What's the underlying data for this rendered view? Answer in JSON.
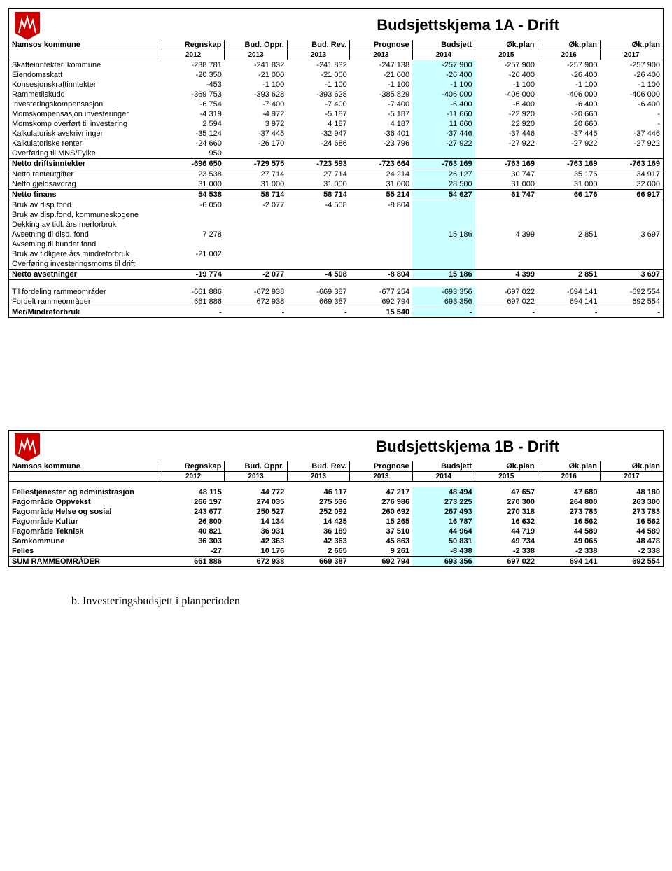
{
  "table1": {
    "title": "Budsjettskjema 1A - Drift",
    "org": "Namsos kommune",
    "cols": [
      "Regnskap",
      "Bud. Oppr.",
      "Bud. Rev.",
      "Prognose",
      "Budsjett",
      "Øk.plan",
      "Øk.plan",
      "Øk.plan"
    ],
    "years": [
      "2012",
      "2013",
      "2013",
      "2013",
      "2014",
      "2015",
      "2016",
      "2017"
    ],
    "rows": [
      {
        "l": "Skatteinntekter, kommune",
        "v": [
          "-238 781",
          "-241 832",
          "-241 832",
          "-247 138",
          "-257 900",
          "-257 900",
          "-257 900",
          "-257 900"
        ]
      },
      {
        "l": "Eiendomsskatt",
        "v": [
          "-20 350",
          "-21 000",
          "-21 000",
          "-21 000",
          "-26 400",
          "-26 400",
          "-26 400",
          "-26 400"
        ]
      },
      {
        "l": "Konsesjonskraftinntekter",
        "v": [
          "-453",
          "-1 100",
          "-1 100",
          "-1 100",
          "-1 100",
          "-1 100",
          "-1 100",
          "-1 100"
        ]
      },
      {
        "l": "Rammetilskudd",
        "v": [
          "-369 753",
          "-393 628",
          "-393 628",
          "-385 829",
          "-406 000",
          "-406 000",
          "-406 000",
          "-406 000"
        ]
      },
      {
        "l": "Investeringskompensasjon",
        "v": [
          "-6 754",
          "-7 400",
          "-7 400",
          "-7 400",
          "-6 400",
          "-6 400",
          "-6 400",
          "-6 400"
        ]
      },
      {
        "l": "Momskompensasjon investeringer",
        "v": [
          "-4 319",
          "-4 972",
          "-5 187",
          "-5 187",
          "-11 660",
          "-22 920",
          "-20 660",
          "-"
        ]
      },
      {
        "l": "Momskomp overført til investering",
        "v": [
          "2 594",
          "3 972",
          "4 187",
          "4 187",
          "11 660",
          "22 920",
          "20 660",
          "-"
        ]
      },
      {
        "l": "Kalkulatorisk avskrivninger",
        "v": [
          "-35 124",
          "-37 445",
          "-32 947",
          "-36 401",
          "-37 446",
          "-37 446",
          "-37 446",
          "-37 446"
        ]
      },
      {
        "l": "Kalkulatoriske renter",
        "v": [
          "-24 660",
          "-26 170",
          "-24 686",
          "-23 796",
          "-27 922",
          "-27 922",
          "-27 922",
          "-27 922"
        ]
      },
      {
        "l": "Overføring til MNS/Fylke",
        "v": [
          "950",
          "",
          "",
          "",
          "",
          "",
          "",
          ""
        ]
      }
    ],
    "sum1": {
      "l": "Netto driftsinntekter",
      "v": [
        "-696 650",
        "-729 575",
        "-723 593",
        "-723 664",
        "-763 169",
        "-763 169",
        "-763 169",
        "-763 169"
      ]
    },
    "rows2": [
      {
        "l": "Netto renteutgifter",
        "v": [
          "23 538",
          "27 714",
          "27 714",
          "24 214",
          "26 127",
          "30 747",
          "35 176",
          "34 917"
        ]
      },
      {
        "l": "Netto gjeldsavdrag",
        "v": [
          "31 000",
          "31 000",
          "31 000",
          "31 000",
          "28 500",
          "31 000",
          "31 000",
          "32 000"
        ]
      }
    ],
    "sum2": {
      "l": "Netto finans",
      "v": [
        "54 538",
        "58 714",
        "58 714",
        "55 214",
        "54 627",
        "61 747",
        "66 176",
        "66 917"
      ]
    },
    "rows3": [
      {
        "l": "Bruk av disp.fond",
        "v": [
          "-6 050",
          "-2 077",
          "-4 508",
          "-8 804",
          "",
          "",
          "",
          ""
        ]
      },
      {
        "l": "Bruk av disp.fond, kommuneskogene",
        "v": [
          "",
          "",
          "",
          "",
          "",
          "",
          "",
          ""
        ]
      },
      {
        "l": "Dekking av tidl. års merforbruk",
        "v": [
          "",
          "",
          "",
          "",
          "",
          "",
          "",
          ""
        ]
      },
      {
        "l": "Avsetning til disp. fond",
        "v": [
          "7 278",
          "",
          "",
          "",
          "15 186",
          "4 399",
          "2 851",
          "3 697"
        ]
      },
      {
        "l": "Avsetning til bundet fond",
        "v": [
          "",
          "",
          "",
          "",
          "",
          "",
          "",
          ""
        ]
      },
      {
        "l": "Bruk av tidligere års mindreforbruk",
        "v": [
          "-21 002",
          "",
          "",
          "",
          "",
          "",
          "",
          ""
        ]
      },
      {
        "l": "Overføring investeringsmoms til drift",
        "v": [
          "",
          "",
          "",
          "",
          "",
          "",
          "",
          ""
        ]
      }
    ],
    "sum3": {
      "l": "Netto avsetninger",
      "v": [
        "-19 774",
        "-2 077",
        "-4 508",
        "-8 804",
        "15 186",
        "4 399",
        "2 851",
        "3 697"
      ]
    },
    "rows4": [
      {
        "l": "Til fordeling rammeområder",
        "v": [
          "-661 886",
          "-672 938",
          "-669 387",
          "-677 254",
          "-693 356",
          "-697 022",
          "-694 141",
          "-692 554"
        ]
      },
      {
        "l": "Fordelt rammeområder",
        "v": [
          "661 886",
          "672 938",
          "669 387",
          "692 794",
          "693 356",
          "697 022",
          "694 141",
          "692 554"
        ]
      }
    ],
    "sum4": {
      "l": "Mer/Mindreforbruk",
      "v": [
        "-",
        "-",
        "-",
        "15 540",
        "-",
        "-",
        "-",
        "-"
      ]
    }
  },
  "table2": {
    "title": "Budsjettskjema 1B - Drift",
    "org": "Namsos kommune",
    "cols": [
      "Regnskap",
      "Bud. Oppr.",
      "Bud. Rev.",
      "Prognose",
      "Budsjett",
      "Øk.plan",
      "Øk.plan",
      "Øk.plan"
    ],
    "years": [
      "2012",
      "2013",
      "2013",
      "2013",
      "2014",
      "2015",
      "2016",
      "2017"
    ],
    "rows": [
      {
        "l": "Fellestjenester og administrasjon",
        "v": [
          "48 115",
          "44 772",
          "46 117",
          "47 217",
          "48 494",
          "47 657",
          "47 680",
          "48 180"
        ],
        "b": true
      },
      {
        "l": "Fagområde Oppvekst",
        "v": [
          "266 197",
          "274 035",
          "275 536",
          "276 986",
          "273 225",
          "270 300",
          "264 800",
          "263 300"
        ],
        "b": true
      },
      {
        "l": "Fagområde Helse og sosial",
        "v": [
          "243 677",
          "250 527",
          "252 092",
          "260 692",
          "267 493",
          "270 318",
          "273 783",
          "273 783"
        ],
        "b": true
      },
      {
        "l": "Fagområde Kultur",
        "v": [
          "26 800",
          "14 134",
          "14 425",
          "15 265",
          "16 787",
          "16 632",
          "16 562",
          "16 562"
        ],
        "b": true
      },
      {
        "l": "Fagområde Teknisk",
        "v": [
          "40 821",
          "36 931",
          "36 189",
          "37 510",
          "44 964",
          "44 719",
          "44 589",
          "44 589"
        ],
        "b": true
      },
      {
        "l": "Samkommune",
        "v": [
          "36 303",
          "42 363",
          "42 363",
          "45 863",
          "50 831",
          "49 734",
          "49 065",
          "48 478"
        ],
        "b": true
      },
      {
        "l": "Felles",
        "v": [
          "-27",
          "10 176",
          "2 665",
          "9 261",
          "-8 438",
          "-2 338",
          "-2 338",
          "-2 338"
        ],
        "b": true
      }
    ],
    "sum": {
      "l": "SUM RAMMEOMRÅDER",
      "v": [
        "661 886",
        "672 938",
        "669 387",
        "692 794",
        "693 356",
        "697 022",
        "694 141",
        "692 554"
      ]
    }
  },
  "footer": "b.   Investeringsbudsjett i planperioden",
  "hl_color": "#ccffff"
}
